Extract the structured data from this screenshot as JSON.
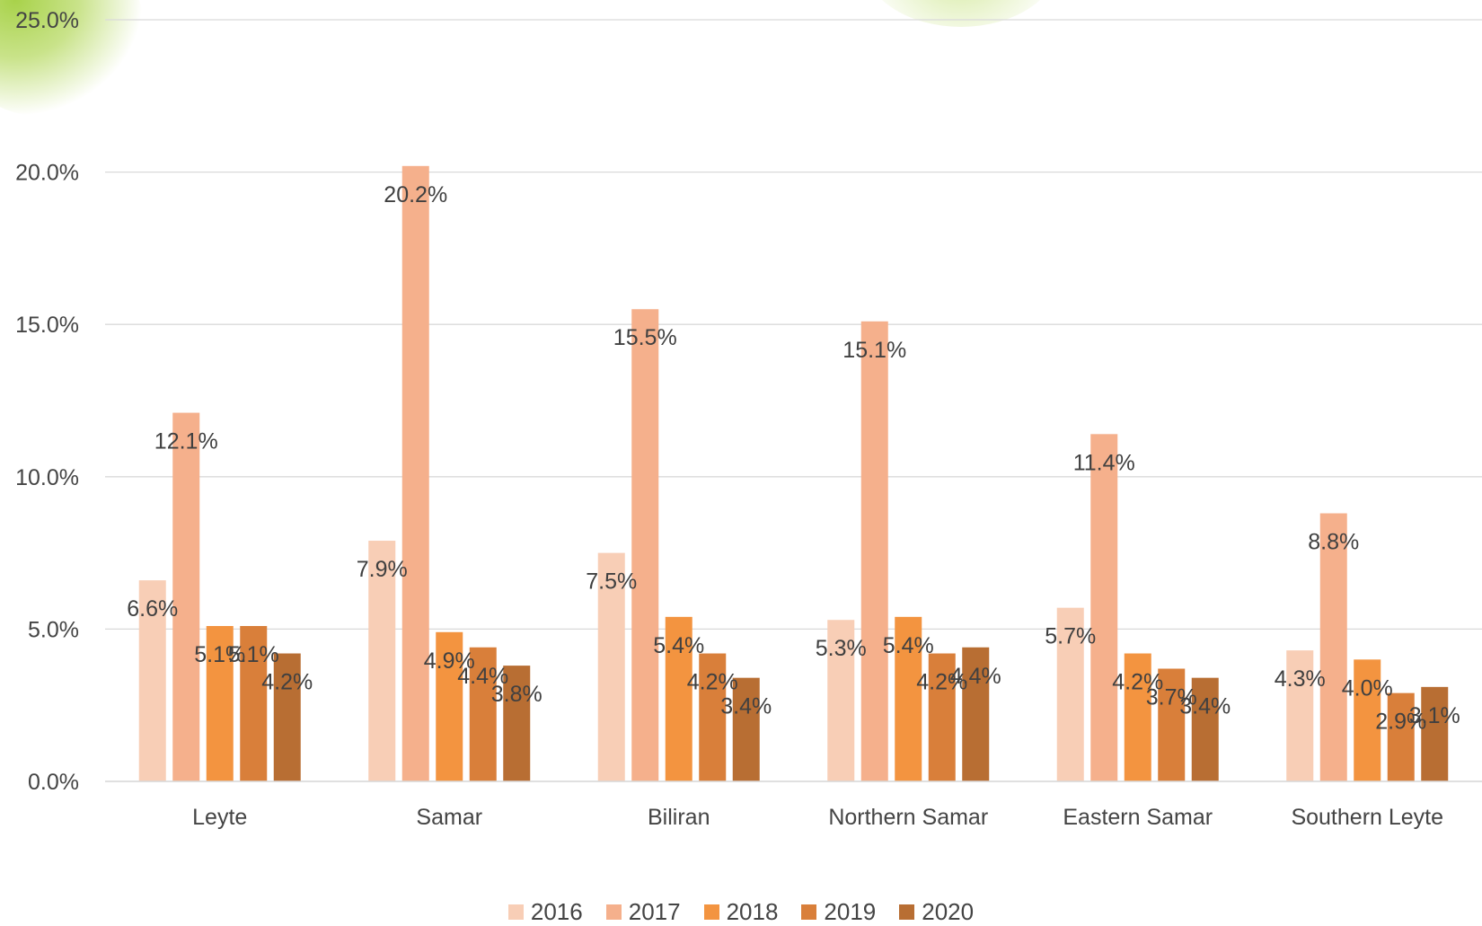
{
  "chart_data": {
    "type": "bar",
    "categories": [
      "Leyte",
      "Samar",
      "Biliran",
      "Northern Samar",
      "Eastern Samar",
      "Southern Leyte"
    ],
    "series": [
      {
        "name": "2016",
        "color": "#F8CEB6",
        "values": [
          6.6,
          7.9,
          7.5,
          5.3,
          5.7,
          4.3
        ]
      },
      {
        "name": "2017",
        "color": "#F5B08C",
        "values": [
          12.1,
          20.2,
          15.5,
          15.1,
          11.4,
          8.8
        ]
      },
      {
        "name": "2018",
        "color": "#F39440",
        "values": [
          5.1,
          4.9,
          5.4,
          5.4,
          4.2,
          4.0
        ]
      },
      {
        "name": "2019",
        "color": "#D97F3A",
        "values": [
          5.1,
          4.4,
          4.2,
          4.2,
          3.7,
          2.9
        ]
      },
      {
        "name": "2020",
        "color": "#B86E33",
        "values": [
          4.2,
          3.8,
          3.4,
          4.4,
          3.4,
          3.1
        ]
      }
    ],
    "ylim": [
      0,
      25
    ],
    "yticks": [
      "0.0%",
      "5.0%",
      "10.0%",
      "15.0%",
      "20.0%",
      "25.0%"
    ],
    "data_label_suffix": "%",
    "grid": true,
    "legend_position": "bottom"
  }
}
